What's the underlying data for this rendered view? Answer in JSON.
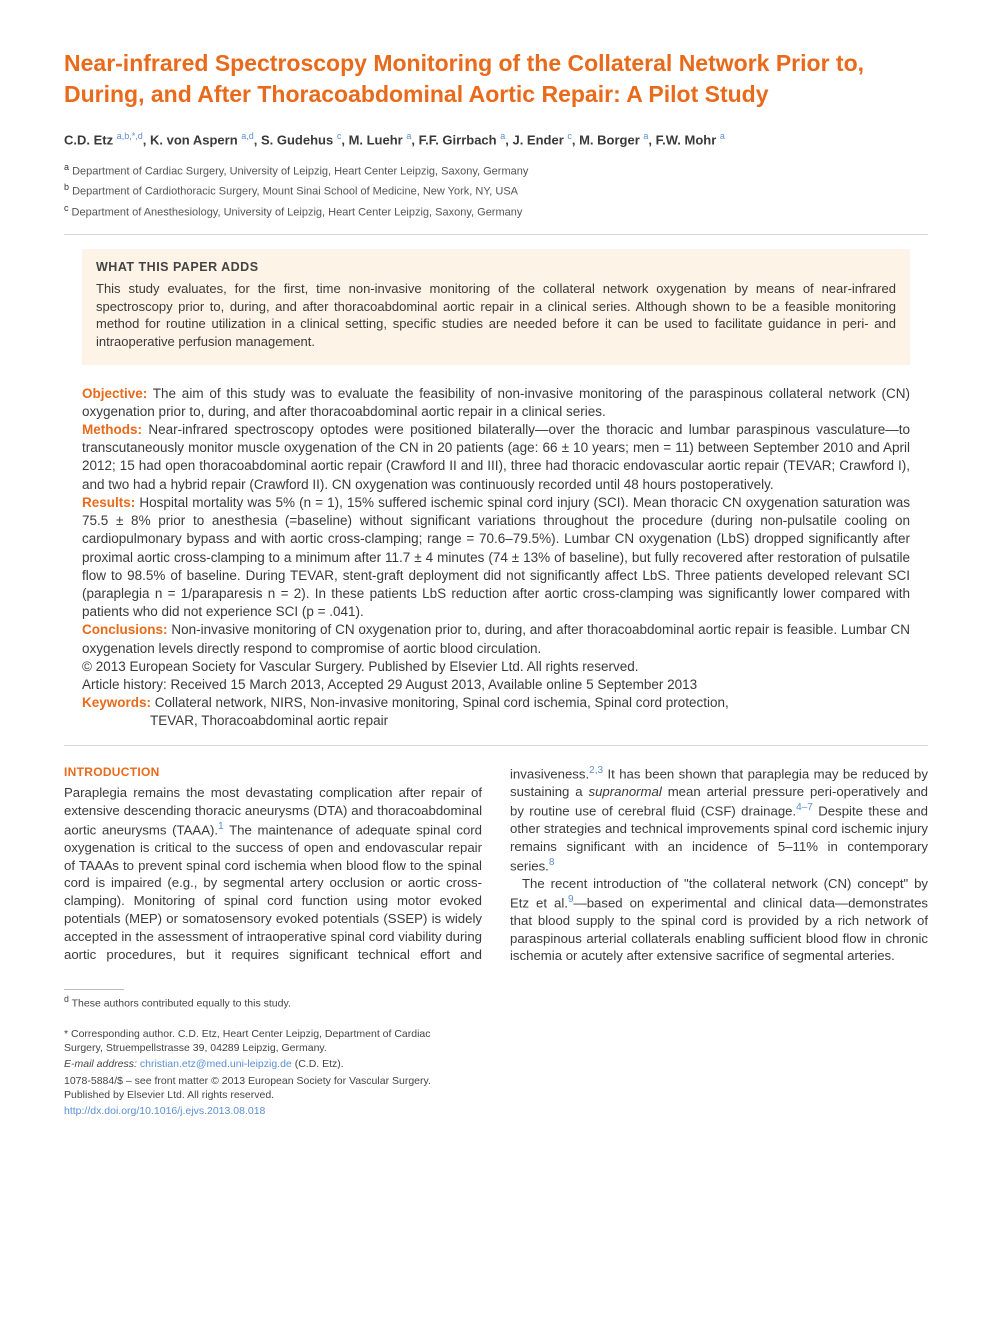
{
  "title": "Near-infrared Spectroscopy Monitoring of the Collateral Network Prior to, During, and After Thoracoabdominal Aortic Repair: A Pilot Study",
  "authors_html": "C.D. Etz <sup>a,b,*,d</sup>, K. von Aspern <sup>a,d</sup>, S. Gudehus <sup>c</sup>, M. Luehr <sup>a</sup>, F.F. Girrbach <sup>a</sup>, J. Ender <sup>c</sup>, M. Borger <sup>a</sup>, F.W. Mohr <sup>a</sup>",
  "affiliations": [
    {
      "sup": "a",
      "text": "Department of Cardiac Surgery, University of Leipzig, Heart Center Leipzig, Saxony, Germany"
    },
    {
      "sup": "b",
      "text": "Department of Cardiothoracic Surgery, Mount Sinai School of Medicine, New York, NY, USA"
    },
    {
      "sup": "c",
      "text": "Department of Anesthesiology, University of Leipzig, Heart Center Leipzig, Saxony, Germany"
    }
  ],
  "highlight": {
    "title": "WHAT THIS PAPER ADDS",
    "body": "This study evaluates, for the first, time non-invasive monitoring of the collateral network oxygenation by means of near-infrared spectroscopy prior to, during, and after thoracoabdominal aortic repair in a clinical series. Although shown to be a feasible monitoring method for routine utilization in a clinical setting, specific studies are needed before it can be used to facilitate guidance in peri- and intraoperative perfusion management."
  },
  "abstract": {
    "objective_label": "Objective:",
    "objective": " The aim of this study was to evaluate the feasibility of non-invasive monitoring of the paraspinous collateral network (CN) oxygenation prior to, during, and after thoracoabdominal aortic repair in a clinical series.",
    "methods_label": "Methods:",
    "methods": " Near-infrared spectroscopy optodes were positioned bilaterally—over the thoracic and lumbar paraspinous vasculature—to transcutaneously monitor muscle oxygenation of the CN in 20 patients (age: 66 ± 10 years; men = 11) between September 2010 and April 2012; 15 had open thoracoabdominal aortic repair (Crawford II and III), three had thoracic endovascular aortic repair (TEVAR; Crawford I), and two had a hybrid repair (Crawford II). CN oxygenation was continuously recorded until 48 hours postoperatively.",
    "results_label": "Results:",
    "results": " Hospital mortality was 5% (n = 1), 15% suffered ischemic spinal cord injury (SCI). Mean thoracic CN oxygenation saturation was 75.5 ± 8% prior to anesthesia (=baseline) without significant variations throughout the procedure (during non-pulsatile cooling on cardiopulmonary bypass and with aortic cross-clamping; range = 70.6–79.5%). Lumbar CN oxygenation (LbS) dropped significantly after proximal aortic cross-clamping to a minimum after 11.7 ± 4 minutes (74 ± 13% of baseline), but fully recovered after restoration of pulsatile flow to 98.5% of baseline. During TEVAR, stent-graft deployment did not significantly affect LbS. Three patients developed relevant SCI (paraplegia n = 1/paraparesis n = 2). In these patients LbS reduction after aortic cross-clamping was significantly lower compared with patients who did not experience SCI (p = .041).",
    "conclusions_label": "Conclusions:",
    "conclusions": " Non-invasive monitoring of CN oxygenation prior to, during, and after thoracoabdominal aortic repair is feasible. Lumbar CN oxygenation levels directly respond to compromise of aortic blood circulation.",
    "copyright": "© 2013 European Society for Vascular Surgery. Published by Elsevier Ltd. All rights reserved.",
    "history": "Article history: Received 15 March 2013, Accepted 29 August 2013, Available online 5 September 2013",
    "keywords_label": "Keywords:",
    "keywords_line1": " Collateral network, NIRS, Non-invasive monitoring, Spinal cord ischemia, Spinal cord protection,",
    "keywords_line2": "TEVAR, Thoracoabdominal aortic repair"
  },
  "intro_heading": "INTRODUCTION",
  "intro_p1_a": "Paraplegia remains the most devastating complication after repair of extensive descending thoracic aneurysms (DTA) and thoracoabdominal aortic aneurysms (TAAA).",
  "intro_ref1": "1",
  "intro_p1_b": " The maintenance of adequate spinal cord oxygenation is critical to the success of open and endovascular repair of TAAAs to prevent spinal cord ischemia when blood flow to the spinal cord is impaired (e.g., by segmental artery occlusion or aortic cross-clamping). Monitoring of spinal cord function using motor evoked potentials (MEP) or somatosensory evoked potentials (SSEP) is widely accepted in the assessment of intraoperative spinal cord viability during aortic procedures, but it requires significant technical effort and invasiveness.",
  "intro_ref2": "2,3",
  "intro_p1_c": " It has been shown that paraplegia may be reduced by sustaining a ",
  "intro_ital": "supranormal",
  "intro_p1_d": " mean arterial pressure peri-operatively and by routine use of cerebral fluid (CSF) drainage.",
  "intro_ref3": "4–7",
  "intro_p1_e": " Despite these and other strategies and technical improvements spinal cord ischemic injury remains significant with an incidence of 5–11% in contemporary series.",
  "intro_ref4": "8",
  "intro_p2_a": "The recent introduction of \"the collateral network (CN) concept\" by Etz et al.",
  "intro_ref5": "9",
  "intro_p2_b": "—based on experimental and clinical data—demonstrates that blood supply to the spinal cord is provided by a rich network of paraspinous arterial collaterals enabling sufficient blood flow in chronic ischemia or acutely after extensive sacrifice of segmental arteries.",
  "footnotes": {
    "equal": "These authors contributed equally to this study.",
    "equal_sup": "d",
    "corr": "* Corresponding author. C.D. Etz, Heart Center Leipzig, Department of Cardiac Surgery, Struempellstrasse 39, 04289 Leipzig, Germany.",
    "email_label": "E-mail address:",
    "email": "christian.etz@med.uni-leipzig.de",
    "email_tail": " (C.D. Etz).",
    "issn": "1078-5884/$ – see front matter © 2013 European Society for Vascular Surgery. Published by Elsevier Ltd. All rights reserved.",
    "doi": "http://dx.doi.org/10.1016/j.ejvs.2013.08.018"
  },
  "colors": {
    "accent": "#e86a1a",
    "link": "#5a8fd6",
    "box_bg": "#fdf3e7",
    "text": "#3a3a3a"
  }
}
